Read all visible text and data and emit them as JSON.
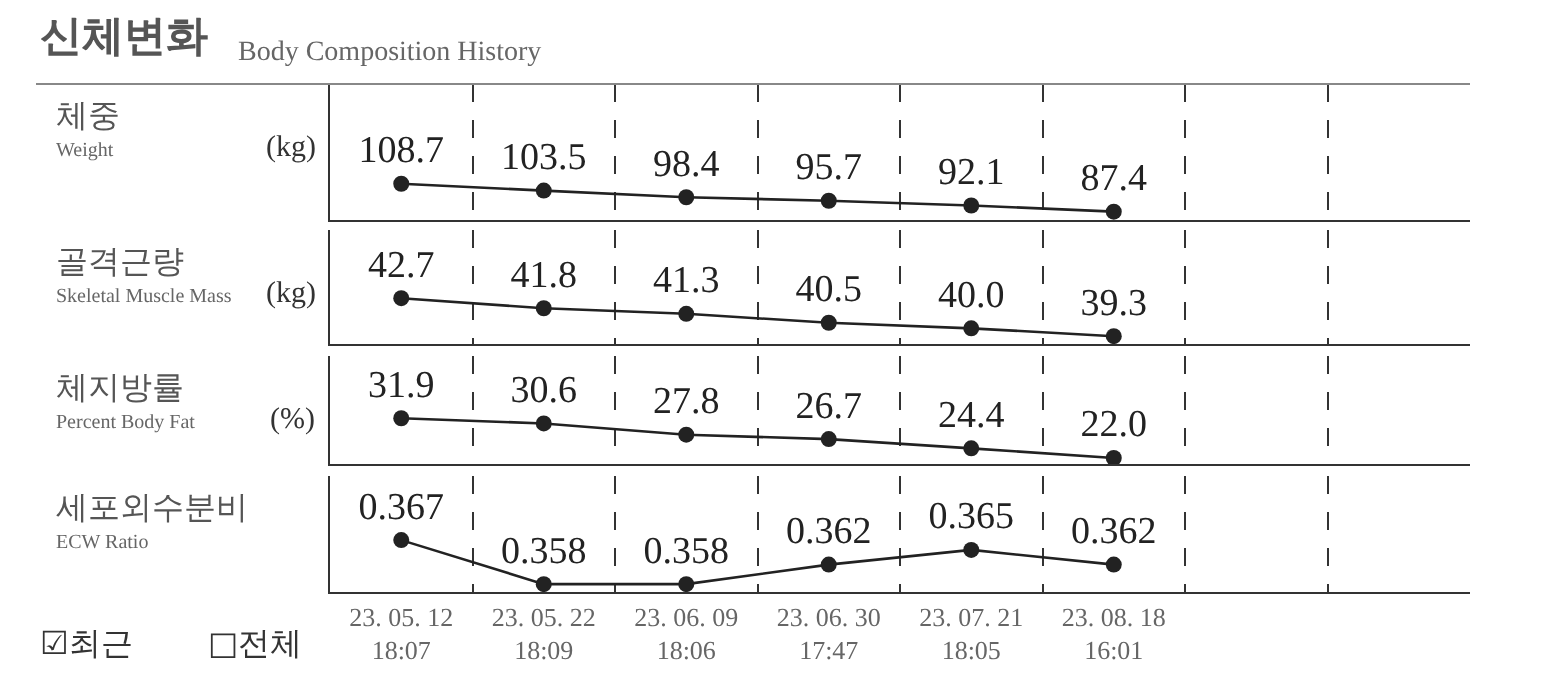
{
  "chart_data": [
    {
      "type": "line",
      "title": "신체변화",
      "subtitle": "Body Composition History",
      "ylabel": "체중\nWeight\n(kg)",
      "series": [
        {
          "color": "#222222",
          "values": [
            108.7,
            103.5,
            98.4,
            95.7,
            92.1,
            87.4,
            null,
            null
          ]
        }
      ],
      "ylim": [
        81,
        185
      ],
      "data_labels": true,
      "marker": "circle",
      "line_style": "solid",
      "grid": "x",
      "tick_labels": false
    },
    {
      "type": "line",
      "ylabel": "골격근량\nSkeletal Muscle Mass\n(kg)",
      "series": [
        {
          "color": "#222222",
          "values": [
            42.7,
            41.8,
            41.3,
            40.5,
            40.0,
            39.3,
            null,
            null
          ],
          "value_labels": [
            "42.7",
            "41.8",
            "41.3",
            "40.5",
            "40.0",
            "39.3",
            null,
            null
          ]
        }
      ],
      "ylim": [
        38.6,
        48.8
      ],
      "marker": "circle",
      "line_style": "solid",
      "grid": "x",
      "tick_labels": false
    },
    {
      "type": "line",
      "ylabel": "체지방률\nPercent Body Fat\n(%)",
      "series": [
        {
          "color": "#222222",
          "values": [
            31.9,
            30.6,
            27.8,
            26.7,
            24.4,
            22.0,
            null,
            null
          ],
          "value_labels": [
            "31.9",
            "30.6",
            "27.8",
            "26.7",
            "24.4",
            "22.0",
            null,
            null
          ]
        }
      ],
      "ylim": [
        20.5,
        47.4
      ],
      "marker": "circle",
      "line_style": "solid",
      "grid": "x",
      "tick_labels": false
    },
    {
      "type": "line",
      "ylabel": "세포외수분비\nECW Ratio",
      "categories": [
        "23. 05. 12\n18:07",
        "23. 05. 22\n18:09",
        "23. 06. 09\n18:06",
        "23. 06. 30\n17:47",
        "23. 07. 21\n18:05",
        "23. 08. 18\n16:01",
        null,
        null
      ],
      "series": [
        {
          "color": "#222222",
          "values": [
            0.367,
            0.358,
            0.358,
            0.362,
            0.365,
            0.362,
            null,
            null
          ]
        }
      ],
      "ylim": [
        0.3564,
        0.3801
      ],
      "data_labels": true,
      "marker": "circle",
      "line_style": "solid",
      "grid": "x",
      "tick_labels": "x",
      "annotations": [
        "☑최근",
        "□전체"
      ]
    }
  ]
}
